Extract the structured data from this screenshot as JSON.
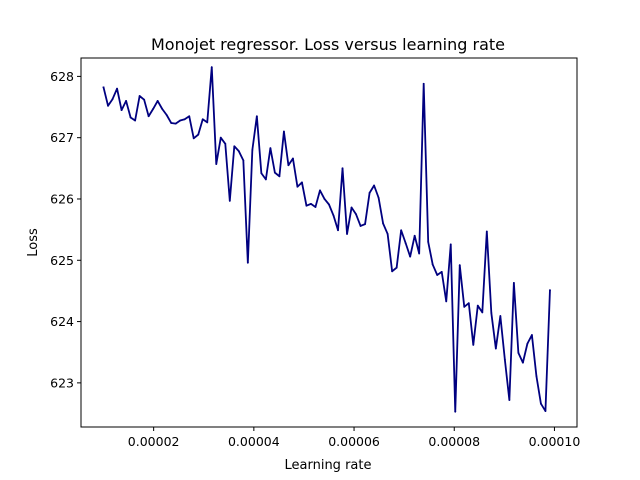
{
  "chart_data": {
    "type": "line",
    "title": "Monojet regressor. Loss versus learning rate",
    "xlabel": "Learning rate",
    "ylabel": "Loss",
    "xlim": [
      5.5e-06,
      0.0001045
    ],
    "ylim": [
      622.28,
      628.3
    ],
    "grid": false,
    "legend": "none",
    "x_ticks": [
      {
        "value": 2e-05,
        "label": "0.00002"
      },
      {
        "value": 4e-05,
        "label": "0.00004"
      },
      {
        "value": 6e-05,
        "label": "0.00006"
      },
      {
        "value": 8e-05,
        "label": "0.00008"
      },
      {
        "value": 0.0001,
        "label": "0.00010"
      }
    ],
    "y_ticks": [
      {
        "value": 623,
        "label": "623"
      },
      {
        "value": 624,
        "label": "624"
      },
      {
        "value": 625,
        "label": "625"
      },
      {
        "value": 626,
        "label": "626"
      },
      {
        "value": 627,
        "label": "627"
      },
      {
        "value": 628,
        "label": "628"
      }
    ],
    "series": [
      {
        "color": "#000080",
        "x": [
          1e-05,
          1.09e-05,
          1.18e-05,
          1.27e-05,
          1.36e-05,
          1.45e-05,
          1.54e-05,
          1.63e-05,
          1.72e-05,
          1.81e-05,
          1.9e-05,
          1.99e-05,
          2.08e-05,
          2.17e-05,
          2.26e-05,
          2.35e-05,
          2.44e-05,
          2.53e-05,
          2.62e-05,
          2.71e-05,
          2.8e-05,
          2.89e-05,
          2.98e-05,
          3.07e-05,
          3.16e-05,
          3.25e-05,
          3.34e-05,
          3.43e-05,
          3.52e-05,
          3.61e-05,
          3.7e-05,
          3.79e-05,
          3.88e-05,
          3.97e-05,
          4.06e-05,
          4.15e-05,
          4.24e-05,
          4.33e-05,
          4.42e-05,
          4.51e-05,
          4.6e-05,
          4.69e-05,
          4.78e-05,
          4.87e-05,
          4.96e-05,
          5.05e-05,
          5.14e-05,
          5.23e-05,
          5.32e-05,
          5.41e-05,
          5.5e-05,
          5.59e-05,
          5.68e-05,
          5.77e-05,
          5.86e-05,
          5.95e-05,
          6.04e-05,
          6.13e-05,
          6.22e-05,
          6.31e-05,
          6.4e-05,
          6.49e-05,
          6.58e-05,
          6.67e-05,
          6.76e-05,
          6.85e-05,
          6.94e-05,
          7.03e-05,
          7.12e-05,
          7.21e-05,
          7.3e-05,
          7.39e-05,
          7.48e-05,
          7.57e-05,
          7.66e-05,
          7.75e-05,
          7.84e-05,
          7.93e-05,
          8.02e-05,
          8.11e-05,
          8.2e-05,
          8.29e-05,
          8.38e-05,
          8.47e-05,
          8.56e-05,
          8.65e-05,
          8.74e-05,
          8.83e-05,
          8.92e-05,
          9.01e-05,
          9.1e-05,
          9.19e-05,
          9.28e-05,
          9.37e-05,
          9.46e-05,
          9.55e-05,
          9.64e-05,
          9.73e-05,
          9.82e-05,
          9.91e-05
        ],
        "y": [
          627.82,
          627.52,
          627.63,
          627.8,
          627.45,
          627.6,
          627.33,
          627.28,
          627.68,
          627.62,
          627.35,
          627.47,
          627.6,
          627.47,
          627.37,
          627.24,
          627.23,
          627.28,
          627.3,
          627.35,
          626.99,
          627.05,
          627.3,
          627.25,
          628.15,
          626.57,
          627.0,
          626.9,
          625.97,
          626.86,
          626.78,
          626.63,
          624.96,
          626.8,
          627.35,
          626.42,
          626.32,
          626.83,
          626.43,
          626.37,
          627.1,
          626.55,
          626.66,
          626.2,
          626.27,
          625.89,
          625.92,
          625.87,
          626.14,
          626.0,
          625.91,
          625.73,
          625.49,
          626.5,
          625.43,
          625.86,
          625.75,
          625.56,
          625.59,
          626.1,
          626.22,
          626.02,
          625.6,
          625.43,
          624.82,
          624.88,
          625.49,
          625.28,
          625.06,
          625.4,
          625.11,
          627.88,
          625.3,
          624.93,
          624.76,
          624.81,
          624.33,
          625.26,
          622.53,
          624.92,
          624.24,
          624.3,
          623.62,
          624.26,
          624.15,
          625.47,
          624.14,
          623.56,
          624.09,
          623.38,
          622.72,
          624.63,
          623.49,
          623.33,
          623.64,
          623.78,
          623.11,
          622.66,
          622.54,
          624.51
        ]
      }
    ]
  }
}
